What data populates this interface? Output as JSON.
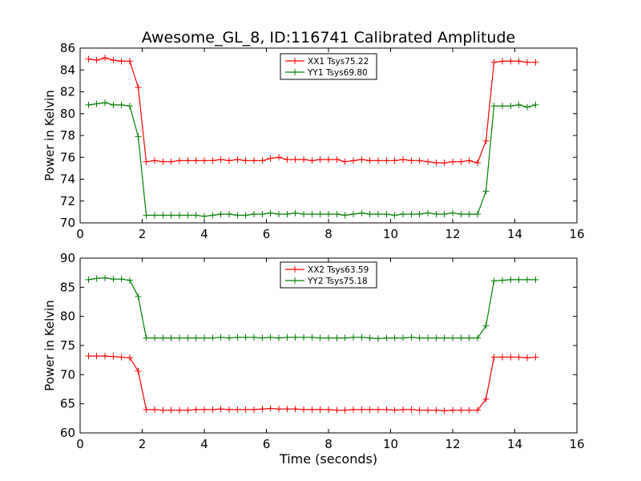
{
  "figure": {
    "title": "Awesome_GL_8, ID:116741 Calibrated Amplitude",
    "xlabel": "Time (seconds)"
  },
  "chart_data": [
    {
      "type": "line",
      "title": "Awesome_GL_8, ID:116741 Calibrated Amplitude",
      "xlabel": "",
      "ylabel": "Power in Kelvin",
      "xlim": [
        0,
        16
      ],
      "ylim": [
        70,
        86
      ],
      "xticks": [
        0,
        2,
        4,
        6,
        8,
        10,
        12,
        14,
        16
      ],
      "yticks": [
        70,
        72,
        74,
        76,
        78,
        80,
        82,
        84,
        86
      ],
      "grid": false,
      "legend": "top-center",
      "x": [
        0.27,
        0.53,
        0.8,
        1.07,
        1.33,
        1.6,
        1.87,
        2.13,
        2.4,
        2.67,
        2.93,
        3.2,
        3.47,
        3.73,
        4.0,
        4.27,
        4.53,
        4.8,
        5.07,
        5.33,
        5.6,
        5.87,
        6.13,
        6.4,
        6.67,
        6.93,
        7.2,
        7.47,
        7.73,
        8.0,
        8.27,
        8.53,
        8.8,
        9.07,
        9.33,
        9.6,
        9.87,
        10.13,
        10.4,
        10.67,
        10.93,
        11.2,
        11.47,
        11.73,
        12.0,
        12.27,
        12.53,
        12.8,
        13.07,
        13.33,
        13.6,
        13.87,
        14.13,
        14.4,
        14.67
      ],
      "series": [
        {
          "name": "XX1 Tsys75.22",
          "color": "#ff0000",
          "values": [
            85.0,
            84.9,
            85.1,
            84.9,
            84.8,
            84.8,
            82.4,
            75.6,
            75.7,
            75.6,
            75.6,
            75.7,
            75.7,
            75.7,
            75.7,
            75.7,
            75.8,
            75.7,
            75.8,
            75.7,
            75.7,
            75.7,
            75.9,
            76.0,
            75.8,
            75.8,
            75.8,
            75.7,
            75.8,
            75.8,
            75.8,
            75.6,
            75.7,
            75.8,
            75.7,
            75.7,
            75.7,
            75.7,
            75.8,
            75.7,
            75.7,
            75.6,
            75.5,
            75.5,
            75.6,
            75.6,
            75.7,
            75.5,
            77.5,
            84.7,
            84.8,
            84.8,
            84.8,
            84.7,
            84.7
          ]
        },
        {
          "name": "YY1 Tsys69.80",
          "color": "#008000",
          "values": [
            80.8,
            80.9,
            81.0,
            80.8,
            80.8,
            80.7,
            77.9,
            70.7,
            70.7,
            70.7,
            70.7,
            70.7,
            70.7,
            70.7,
            70.6,
            70.7,
            70.8,
            70.8,
            70.7,
            70.7,
            70.8,
            70.8,
            70.9,
            70.8,
            70.8,
            70.9,
            70.8,
            70.8,
            70.8,
            70.8,
            70.8,
            70.7,
            70.8,
            70.9,
            70.8,
            70.8,
            70.8,
            70.7,
            70.8,
            70.8,
            70.8,
            70.9,
            70.8,
            70.8,
            70.9,
            70.8,
            70.8,
            70.8,
            72.9,
            80.7,
            80.7,
            80.7,
            80.8,
            80.6,
            80.8
          ]
        }
      ]
    },
    {
      "type": "line",
      "title": "",
      "xlabel": "Time (seconds)",
      "ylabel": "Power in Kelvin",
      "xlim": [
        0,
        16
      ],
      "ylim": [
        60,
        90
      ],
      "xticks": [
        0,
        2,
        4,
        6,
        8,
        10,
        12,
        14,
        16
      ],
      "yticks": [
        60,
        65,
        70,
        75,
        80,
        85,
        90
      ],
      "grid": false,
      "legend": "top-center",
      "x": [
        0.27,
        0.53,
        0.8,
        1.07,
        1.33,
        1.6,
        1.87,
        2.13,
        2.4,
        2.67,
        2.93,
        3.2,
        3.47,
        3.73,
        4.0,
        4.27,
        4.53,
        4.8,
        5.07,
        5.33,
        5.6,
        5.87,
        6.13,
        6.4,
        6.67,
        6.93,
        7.2,
        7.47,
        7.73,
        8.0,
        8.27,
        8.53,
        8.8,
        9.07,
        9.33,
        9.6,
        9.87,
        10.13,
        10.4,
        10.67,
        10.93,
        11.2,
        11.47,
        11.73,
        12.0,
        12.27,
        12.53,
        12.8,
        13.07,
        13.33,
        13.6,
        13.87,
        14.13,
        14.4,
        14.67
      ],
      "series": [
        {
          "name": "XX2 Tsys63.59",
          "color": "#ff0000",
          "values": [
            73.2,
            73.2,
            73.2,
            73.1,
            73.0,
            72.9,
            70.6,
            64.0,
            64.0,
            63.9,
            63.9,
            63.9,
            63.9,
            64.0,
            64.0,
            64.0,
            64.1,
            64.0,
            64.0,
            64.0,
            64.0,
            64.1,
            64.2,
            64.1,
            64.1,
            64.1,
            64.0,
            64.0,
            64.0,
            64.0,
            63.9,
            63.9,
            64.0,
            64.0,
            64.0,
            64.0,
            64.0,
            63.9,
            64.0,
            64.0,
            63.9,
            63.9,
            63.9,
            63.8,
            63.9,
            63.9,
            63.9,
            63.9,
            65.8,
            73.0,
            73.0,
            73.0,
            73.0,
            72.9,
            73.0
          ]
        },
        {
          "name": "YY2 Tsys75.18",
          "color": "#008000",
          "values": [
            86.3,
            86.5,
            86.6,
            86.4,
            86.4,
            86.2,
            83.4,
            76.3,
            76.3,
            76.3,
            76.3,
            76.3,
            76.3,
            76.3,
            76.3,
            76.3,
            76.4,
            76.3,
            76.4,
            76.4,
            76.4,
            76.3,
            76.4,
            76.3,
            76.4,
            76.4,
            76.4,
            76.4,
            76.3,
            76.3,
            76.3,
            76.3,
            76.4,
            76.4,
            76.3,
            76.2,
            76.3,
            76.3,
            76.3,
            76.4,
            76.3,
            76.3,
            76.3,
            76.3,
            76.3,
            76.3,
            76.3,
            76.3,
            78.4,
            86.1,
            86.2,
            86.3,
            86.3,
            86.3,
            86.3
          ]
        }
      ]
    }
  ]
}
